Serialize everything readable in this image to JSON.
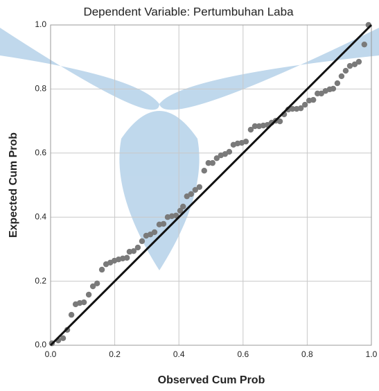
{
  "chart_data": {
    "type": "scatter",
    "title": "Dependent Variable: Pertumbuhan Laba",
    "xlabel": "Observed Cum Prob",
    "ylabel": "Expected Cum Prob",
    "color": "#7a7a7a",
    "line_color": "#111111",
    "grid": true,
    "xlim": [
      0,
      1
    ],
    "ylim": [
      0,
      1
    ],
    "xticks": [
      {
        "value": 0,
        "label": "0.0"
      },
      {
        "value": 0.2,
        "label": "0.2"
      },
      {
        "value": 0.4,
        "label": "0.4"
      },
      {
        "value": 0.6,
        "label": "0.6"
      },
      {
        "value": 0.8,
        "label": "0.8"
      },
      {
        "value": 1,
        "label": "1.0"
      }
    ],
    "yticks": [
      {
        "value": 0,
        "label": "0.0"
      },
      {
        "value": 0.2,
        "label": "0.2"
      },
      {
        "value": 0.4,
        "label": "0.4"
      },
      {
        "value": 0.6,
        "label": "0.6"
      },
      {
        "value": 0.8,
        "label": "0.8"
      },
      {
        "value": 1,
        "label": "1.0"
      }
    ],
    "x": [
      0.004,
      0.024,
      0.039,
      0.052,
      0.065,
      0.078,
      0.091,
      0.104,
      0.119,
      0.132,
      0.145,
      0.16,
      0.173,
      0.186,
      0.199,
      0.212,
      0.225,
      0.238,
      0.246,
      0.259,
      0.272,
      0.285,
      0.298,
      0.311,
      0.324,
      0.339,
      0.352,
      0.365,
      0.378,
      0.391,
      0.404,
      0.413,
      0.425,
      0.438,
      0.451,
      0.464,
      0.479,
      0.492,
      0.505,
      0.518,
      0.531,
      0.544,
      0.557,
      0.57,
      0.583,
      0.596,
      0.609,
      0.624,
      0.637,
      0.65,
      0.663,
      0.676,
      0.689,
      0.702,
      0.715,
      0.728,
      0.741,
      0.754,
      0.767,
      0.78,
      0.793,
      0.806,
      0.819,
      0.832,
      0.844,
      0.857,
      0.87,
      0.881,
      0.894,
      0.907,
      0.92,
      0.933,
      0.948,
      0.961,
      0.978,
      0.991
    ],
    "values": [
      0.006,
      0.015,
      0.022,
      0.048,
      0.095,
      0.128,
      0.132,
      0.134,
      0.158,
      0.184,
      0.193,
      0.236,
      0.253,
      0.258,
      0.264,
      0.268,
      0.271,
      0.273,
      0.292,
      0.294,
      0.305,
      0.325,
      0.342,
      0.346,
      0.353,
      0.377,
      0.379,
      0.4,
      0.403,
      0.405,
      0.42,
      0.433,
      0.465,
      0.472,
      0.485,
      0.494,
      0.545,
      0.569,
      0.569,
      0.584,
      0.593,
      0.597,
      0.604,
      0.626,
      0.63,
      0.632,
      0.636,
      0.673,
      0.684,
      0.684,
      0.686,
      0.688,
      0.695,
      0.701,
      0.699,
      0.721,
      0.736,
      0.738,
      0.738,
      0.74,
      0.751,
      0.764,
      0.766,
      0.786,
      0.786,
      0.794,
      0.799,
      0.801,
      0.818,
      0.84,
      0.857,
      0.872,
      0.877,
      0.885,
      0.939,
      1.0
    ]
  }
}
